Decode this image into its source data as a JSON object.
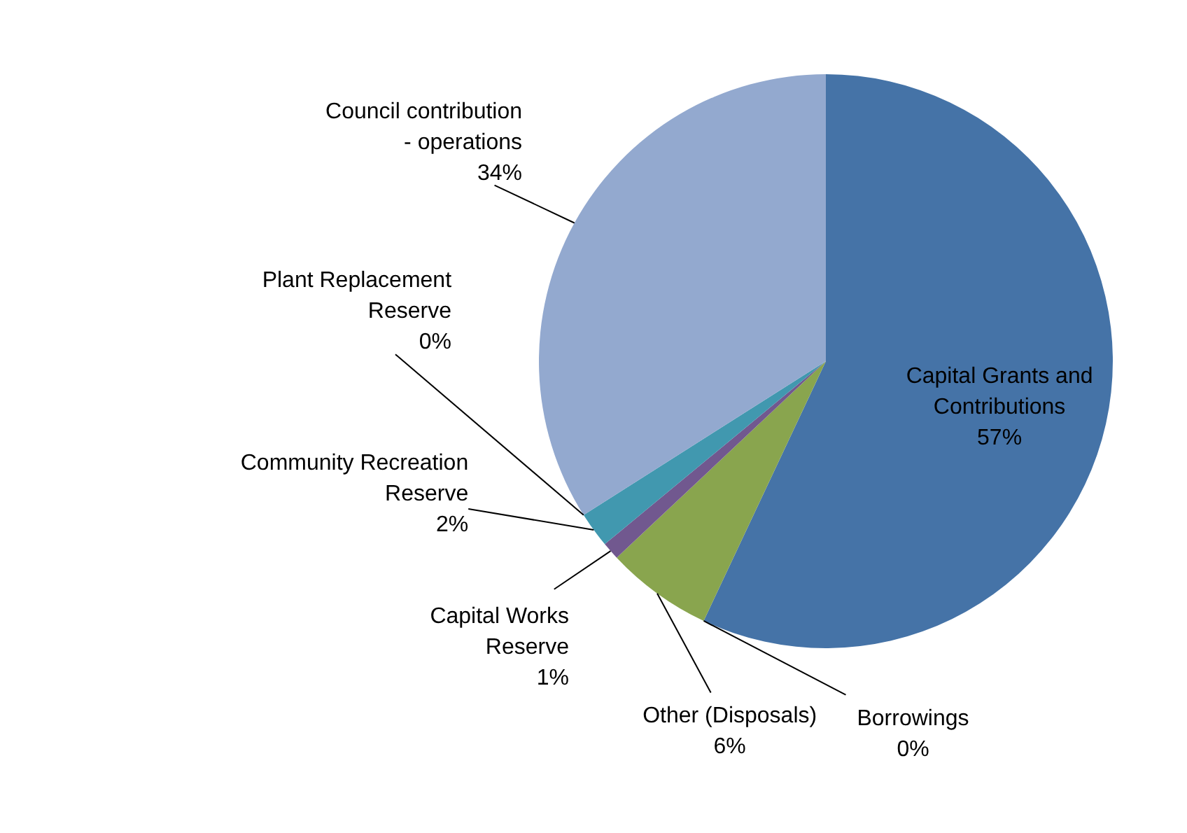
{
  "chart_data": {
    "type": "pie",
    "categories": [
      "Capital Grants and Contributions",
      "Borrowings",
      "Other (Disposals)",
      "Capital Works Reserve",
      "Community Recreation Reserve",
      "Plant Replacement Reserve",
      "Council contribution - operations"
    ],
    "values": [
      57,
      0,
      6,
      1,
      2,
      0,
      34
    ],
    "value_labels": [
      "57%",
      "0%",
      "6%",
      "1%",
      "2%",
      "0%",
      "34%"
    ],
    "colors": [
      "#4573a7",
      "#aa4643",
      "#89a54e",
      "#71588f",
      "#4198af",
      "#db843d",
      "#93a9cf"
    ]
  }
}
